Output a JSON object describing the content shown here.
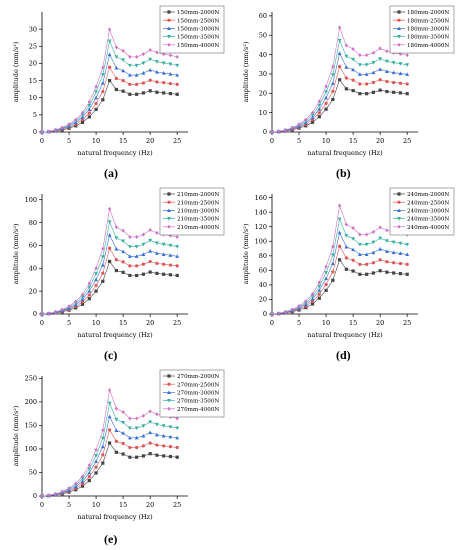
{
  "chart_data": [
    {
      "type": "line",
      "panel_label": "(a)",
      "xlabel": "natural frequency (Hz)",
      "ylabel": "amplitude (mm/s²)",
      "xlim": [
        0,
        27
      ],
      "ylim": [
        0,
        35
      ],
      "x_ticks": [
        0,
        5,
        10,
        15,
        20,
        25
      ],
      "y_ticks": [
        0,
        5,
        10,
        15,
        20,
        25,
        30
      ],
      "x": [
        0,
        1.25,
        2.5,
        3.75,
        5,
        6.25,
        7.5,
        8.75,
        10,
        11.25,
        12.5,
        13.75,
        15,
        16.25,
        17.5,
        18.75,
        20,
        21.25,
        22.5,
        23.75,
        25
      ],
      "legend_position": "top-right",
      "series": [
        {
          "name": "150mm-2000N",
          "color": "#444444",
          "values": [
            0,
            0.1,
            0.3,
            0.6,
            1.1,
            1.8,
            2.8,
            4.4,
            6.6,
            9.4,
            15.0,
            12.4,
            11.9,
            11.0,
            11.0,
            11.4,
            12.0,
            11.6,
            11.4,
            11.2,
            11.0
          ]
        },
        {
          "name": "150mm-2500N",
          "color": "#e05555",
          "values": [
            0,
            0.1,
            0.4,
            0.8,
            1.4,
            2.3,
            3.6,
            5.5,
            8.3,
            11.8,
            18.9,
            15.6,
            15.0,
            13.9,
            13.9,
            14.3,
            15.1,
            14.6,
            14.4,
            14.1,
            13.9
          ]
        },
        {
          "name": "150mm-3000N",
          "color": "#3a6fd8",
          "values": [
            0,
            0.1,
            0.5,
            1.0,
            1.7,
            2.8,
            4.3,
            6.6,
            10.0,
            14.3,
            22.6,
            18.7,
            17.9,
            16.6,
            16.6,
            17.2,
            18.1,
            17.5,
            17.2,
            16.9,
            16.6
          ]
        },
        {
          "name": "150mm-3500N",
          "color": "#35b0a0",
          "values": [
            0,
            0.1,
            0.5,
            1.1,
            2.0,
            3.2,
            5.0,
            7.7,
            11.7,
            16.7,
            26.5,
            21.9,
            21.0,
            19.4,
            19.4,
            20.1,
            21.2,
            20.5,
            20.1,
            19.8,
            19.4
          ]
        },
        {
          "name": "150mm-4000N",
          "color": "#d070c8",
          "values": [
            0,
            0.1,
            0.6,
            1.3,
            2.3,
            3.6,
            5.6,
            8.8,
            13.2,
            18.8,
            29.9,
            24.7,
            23.7,
            21.9,
            21.9,
            22.7,
            23.9,
            23.2,
            22.7,
            22.4,
            21.9
          ]
        }
      ]
    },
    {
      "type": "line",
      "panel_label": "(b)",
      "xlabel": "natural frequency (Hz)",
      "ylabel": "amplitude (mm/s²)",
      "xlim": [
        0,
        27
      ],
      "ylim": [
        0,
        62
      ],
      "x_ticks": [
        0,
        5,
        10,
        15,
        20,
        25
      ],
      "y_ticks": [
        0,
        10,
        20,
        30,
        40,
        50,
        60
      ],
      "x": [
        0,
        1.25,
        2.5,
        3.75,
        5,
        6.25,
        7.5,
        8.75,
        10,
        11.25,
        12.5,
        13.75,
        15,
        16.25,
        17.5,
        18.75,
        20,
        21.25,
        22.5,
        23.75,
        25
      ],
      "legend_position": "top-right",
      "series": [
        {
          "name": "180mm-2000N",
          "color": "#444444",
          "values": [
            0,
            0.2,
            0.5,
            1.1,
            2.0,
            3.2,
            5.0,
            7.9,
            11.8,
            16.8,
            27.0,
            22.3,
            21.4,
            19.8,
            19.8,
            20.5,
            21.6,
            20.9,
            20.5,
            20.2,
            19.8
          ]
        },
        {
          "name": "180mm-2500N",
          "color": "#e05555",
          "values": [
            0,
            0.2,
            0.6,
            1.4,
            2.5,
            4.0,
            6.3,
            9.9,
            14.8,
            21.0,
            33.8,
            27.9,
            26.8,
            24.8,
            24.8,
            25.6,
            27.0,
            26.1,
            25.6,
            25.2,
            24.8
          ]
        },
        {
          "name": "180mm-3000N",
          "color": "#3a6fd8",
          "values": [
            0,
            0.2,
            0.8,
            1.7,
            3.0,
            4.8,
            7.5,
            11.8,
            17.7,
            25.2,
            40.6,
            33.5,
            32.2,
            29.8,
            29.8,
            30.7,
            32.4,
            31.3,
            30.7,
            30.2,
            29.8
          ]
        },
        {
          "name": "180mm-3500N",
          "color": "#35b0a0",
          "values": [
            0,
            0.3,
            0.9,
            2.0,
            3.5,
            5.6,
            8.8,
            13.8,
            20.7,
            29.5,
            47.3,
            39.1,
            37.5,
            34.7,
            34.7,
            35.8,
            37.8,
            36.5,
            35.8,
            35.3,
            34.7
          ]
        },
        {
          "name": "180mm-4000N",
          "color": "#d070c8",
          "values": [
            0,
            0.3,
            1.0,
            2.2,
            4.0,
            6.4,
            10.0,
            15.8,
            23.6,
            33.7,
            54.0,
            44.7,
            42.9,
            39.7,
            39.7,
            40.9,
            43.2,
            41.7,
            40.9,
            40.3,
            39.7
          ]
        }
      ]
    },
    {
      "type": "line",
      "panel_label": "(c)",
      "xlabel": "natural frequency (Hz)",
      "ylabel": "amplitude (mm/s²)",
      "xlim": [
        0,
        27
      ],
      "ylim": [
        0,
        105
      ],
      "x_ticks": [
        0,
        5,
        10,
        15,
        20,
        25
      ],
      "y_ticks": [
        0,
        20,
        40,
        60,
        80,
        100
      ],
      "x": [
        0,
        1.25,
        2.5,
        3.75,
        5,
        6.25,
        7.5,
        8.75,
        10,
        11.25,
        12.5,
        13.75,
        15,
        16.25,
        17.5,
        18.75,
        20,
        21.25,
        22.5,
        23.75,
        25
      ],
      "legend_position": "top-right",
      "series": [
        {
          "name": "210mm-2000N",
          "color": "#444444",
          "values": [
            0,
            0.3,
            0.9,
            1.9,
            3.4,
            5.4,
            8.5,
            13.4,
            20.0,
            28.6,
            46.0,
            38.0,
            36.5,
            33.7,
            33.7,
            34.8,
            36.7,
            35.5,
            34.8,
            34.3,
            33.7
          ]
        },
        {
          "name": "210mm-2500N",
          "color": "#e05555",
          "values": [
            0,
            0.4,
            1.1,
            2.4,
            4.2,
            6.8,
            10.6,
            16.7,
            25.0,
            35.7,
            57.5,
            47.5,
            45.6,
            42.1,
            42.1,
            43.5,
            45.9,
            44.3,
            43.5,
            42.8,
            42.1
          ]
        },
        {
          "name": "210mm-3000N",
          "color": "#3a6fd8",
          "values": [
            0,
            0.4,
            1.3,
            2.9,
            5.1,
            8.1,
            12.8,
            20.1,
            30.1,
            42.9,
            69.0,
            57.0,
            54.7,
            50.5,
            50.5,
            52.2,
            55.1,
            53.2,
            52.2,
            51.4,
            50.5
          ]
        },
        {
          "name": "210mm-3500N",
          "color": "#35b0a0",
          "values": [
            0,
            0.5,
            1.5,
            3.4,
            5.9,
            9.5,
            14.9,
            23.4,
            35.1,
            50.0,
            80.5,
            66.5,
            63.8,
            58.9,
            58.9,
            60.9,
            64.3,
            62.1,
            60.9,
            60.0,
            58.9
          ]
        },
        {
          "name": "210mm-4000N",
          "color": "#d070c8",
          "values": [
            0,
            0.5,
            1.7,
            3.8,
            6.8,
            10.9,
            17.0,
            26.8,
            40.1,
            57.2,
            92.0,
            76.0,
            73.0,
            67.4,
            67.4,
            69.6,
            73.5,
            71.0,
            69.6,
            68.6,
            67.4
          ]
        }
      ]
    },
    {
      "type": "line",
      "panel_label": "(d)",
      "xlabel": "natural frequency (Hz)",
      "ylabel": "amplitude (mm/s²)",
      "xlim": [
        0,
        27
      ],
      "ylim": [
        0,
        165
      ],
      "x_ticks": [
        0,
        5,
        10,
        15,
        20,
        25
      ],
      "y_ticks": [
        0,
        20,
        40,
        60,
        80,
        100,
        120,
        140,
        160
      ],
      "x": [
        0,
        1.25,
        2.5,
        3.75,
        5,
        6.25,
        7.5,
        8.75,
        10,
        11.25,
        12.5,
        13.75,
        15,
        16.25,
        17.5,
        18.75,
        20,
        21.25,
        22.5,
        23.75,
        25
      ],
      "legend_position": "top-right",
      "series": [
        {
          "name": "240mm-2000N",
          "color": "#444444",
          "values": [
            0,
            0.5,
            1.4,
            3.1,
            5.5,
            8.8,
            13.8,
            21.7,
            32.5,
            46.3,
            74.5,
            61.5,
            59.1,
            54.6,
            54.6,
            56.4,
            59.5,
            57.5,
            56.4,
            55.5,
            54.6
          ]
        },
        {
          "name": "240mm-2500N",
          "color": "#e05555",
          "values": [
            0,
            0.6,
            1.7,
            3.9,
            6.9,
            11.0,
            17.3,
            27.2,
            40.6,
            57.9,
            93.2,
            77.0,
            73.9,
            68.3,
            68.3,
            70.5,
            74.4,
            71.9,
            70.5,
            69.4,
            68.3
          ]
        },
        {
          "name": "240mm-3000N",
          "color": "#3a6fd8",
          "values": [
            0,
            0.7,
            2.1,
            4.6,
            8.2,
            13.2,
            20.7,
            32.6,
            48.7,
            69.5,
            111.8,
            92.3,
            88.6,
            81.9,
            81.9,
            84.6,
            89.3,
            86.2,
            84.6,
            83.3,
            81.9
          ]
        },
        {
          "name": "240mm-3500N",
          "color": "#35b0a0",
          "values": [
            0,
            0.8,
            2.4,
            5.4,
            9.6,
            15.4,
            24.2,
            38.0,
            56.8,
            81.0,
            130.4,
            107.7,
            103.4,
            95.5,
            95.5,
            98.7,
            104.2,
            100.6,
            98.7,
            97.2,
            95.5
          ]
        },
        {
          "name": "240mm-4000N",
          "color": "#d070c8",
          "values": [
            0,
            0.9,
            2.8,
            6.2,
            11.0,
            17.6,
            27.6,
            43.4,
            65.0,
            92.6,
            149.0,
            123.1,
            118.2,
            109.1,
            109.1,
            112.8,
            119.1,
            115.0,
            112.8,
            111.1,
            109.1
          ]
        }
      ]
    },
    {
      "type": "line",
      "panel_label": "(e)",
      "xlabel": "natural frequency (Hz)",
      "ylabel": "amplitude (mm/s²)",
      "xlim": [
        0,
        27
      ],
      "ylim": [
        0,
        255
      ],
      "x_ticks": [
        0,
        5,
        10,
        15,
        20,
        25
      ],
      "y_ticks": [
        0,
        50,
        100,
        150,
        200,
        250
      ],
      "x": [
        0,
        1.25,
        2.5,
        3.75,
        5,
        6.25,
        7.5,
        8.75,
        10,
        11.25,
        12.5,
        13.75,
        15,
        16.25,
        17.5,
        18.75,
        20,
        21.25,
        22.5,
        23.75,
        25
      ],
      "legend_position": "top-right",
      "series": [
        {
          "name": "270mm-2000N",
          "color": "#444444",
          "values": [
            0,
            0.7,
            2.1,
            4.7,
            8.3,
            13.3,
            20.9,
            32.8,
            49.0,
            69.9,
            112.5,
            92.9,
            89.2,
            82.4,
            82.4,
            85.2,
            89.9,
            86.8,
            85.2,
            83.9,
            82.4
          ]
        },
        {
          "name": "270mm-2500N",
          "color": "#e05555",
          "values": [
            0,
            0.9,
            2.6,
            5.8,
            10.4,
            16.7,
            26.1,
            41.0,
            61.3,
            87.4,
            140.6,
            116.2,
            111.5,
            103.0,
            103.0,
            106.5,
            112.4,
            108.5,
            106.5,
            104.9,
            103.0
          ]
        },
        {
          "name": "270mm-3000N",
          "color": "#3a6fd8",
          "values": [
            0,
            1.0,
            3.2,
            7.0,
            12.5,
            20.0,
            31.3,
            49.2,
            73.6,
            104.9,
            168.8,
            139.4,
            133.8,
            123.6,
            123.6,
            127.8,
            134.9,
            130.2,
            127.8,
            125.9,
            123.6
          ]
        },
        {
          "name": "270mm-3500N",
          "color": "#35b0a0",
          "values": [
            0,
            1.2,
            3.7,
            8.1,
            14.6,
            23.3,
            36.6,
            57.4,
            85.8,
            122.4,
            196.9,
            162.6,
            156.1,
            144.2,
            144.2,
            149.0,
            157.3,
            151.9,
            149.0,
            146.8,
            144.2
          ]
        },
        {
          "name": "270mm-4000N",
          "color": "#d070c8",
          "values": [
            0,
            1.4,
            4.2,
            9.3,
            16.6,
            26.6,
            41.8,
            65.6,
            98.1,
            139.9,
            225.0,
            185.9,
            178.4,
            164.8,
            164.8,
            170.3,
            179.8,
            173.6,
            170.3,
            167.8,
            164.8
          ]
        }
      ]
    }
  ]
}
